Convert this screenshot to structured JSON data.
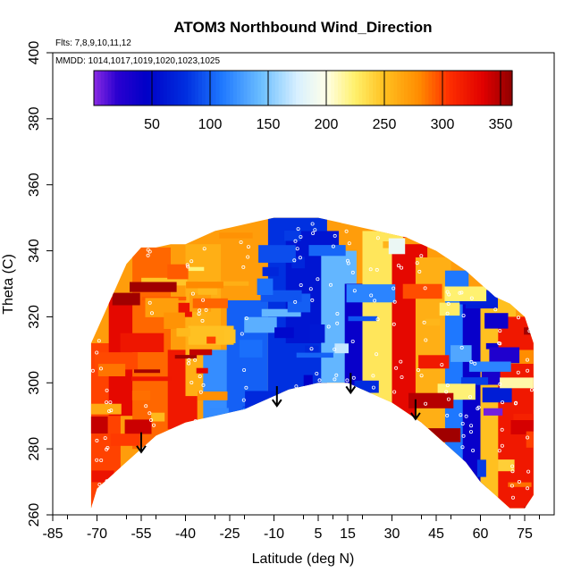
{
  "chart_data": {
    "type": "heatmap",
    "title": "ATOM3 Northbound Wind_Direction",
    "subtitle_flights": "Flts: 7,8,9,10,11,12",
    "subtitle_dates": "MMDD: 1014,1017,1019,1020,1023,1025",
    "xlabel": "Latitude (deg N)",
    "ylabel": "Theta (C)",
    "xlim": [
      -85,
      85
    ],
    "ylim": [
      260,
      400
    ],
    "x_ticks": [
      -85,
      -70,
      -55,
      -40,
      -25,
      -10,
      5,
      15,
      30,
      45,
      60,
      75
    ],
    "x_tick_labels": [
      "-85",
      "-70",
      "-55",
      "-40",
      "-25",
      "-10",
      "5",
      "15",
      "30",
      "45",
      "60",
      "75"
    ],
    "y_ticks": [
      260,
      280,
      300,
      320,
      340,
      360,
      380,
      400
    ],
    "y_tick_labels": [
      "260",
      "280",
      "300",
      "320",
      "340",
      "360",
      "380",
      "400"
    ],
    "colorbar": {
      "range": [
        0,
        360
      ],
      "ticks": [
        50,
        100,
        150,
        200,
        250,
        300,
        350
      ],
      "tick_labels": [
        "50",
        "100",
        "150",
        "200",
        "250",
        "300",
        "350"
      ],
      "stops": [
        {
          "v": 0,
          "c": "#8a2be2"
        },
        {
          "v": 20,
          "c": "#2a00d0"
        },
        {
          "v": 45,
          "c": "#0000c8"
        },
        {
          "v": 80,
          "c": "#0030e0"
        },
        {
          "v": 110,
          "c": "#1e78ff"
        },
        {
          "v": 145,
          "c": "#6ec0ff"
        },
        {
          "v": 175,
          "c": "#d8f0ff"
        },
        {
          "v": 200,
          "c": "#ffffe8"
        },
        {
          "v": 225,
          "c": "#fff06a"
        },
        {
          "v": 250,
          "c": "#ffc020"
        },
        {
          "v": 280,
          "c": "#ff8c00"
        },
        {
          "v": 305,
          "c": "#ff3000"
        },
        {
          "v": 335,
          "c": "#e00000"
        },
        {
          "v": 360,
          "c": "#900000"
        }
      ]
    },
    "data_envelope": {
      "lat": [
        -72,
        -70,
        -65,
        -60,
        -55,
        -50,
        -45,
        -40,
        -35,
        -30,
        -25,
        -20,
        -15,
        -10,
        -5,
        0,
        5,
        10,
        15,
        20,
        25,
        30,
        35,
        40,
        45,
        50,
        55,
        60,
        65,
        70,
        75,
        78
      ],
      "theta_top": [
        312,
        316,
        326,
        336,
        341,
        341,
        342,
        342,
        344,
        346,
        347,
        348,
        349,
        350,
        350,
        350,
        350,
        349,
        348,
        347,
        346,
        345,
        344,
        342,
        340,
        337,
        334,
        330,
        326,
        324,
        320,
        312
      ],
      "theta_bottom": [
        262,
        268,
        272,
        276,
        280,
        284,
        286,
        288,
        289,
        290,
        291,
        292,
        294,
        296,
        298,
        299,
        300,
        300,
        300,
        298,
        296,
        294,
        291,
        288,
        284,
        280,
        276,
        270,
        266,
        262,
        262,
        266
      ]
    },
    "regions": [
      {
        "lat": [
          -72,
          -62
        ],
        "theta": [
          262,
          312
        ],
        "value": 300
      },
      {
        "lat": [
          -66,
          -56
        ],
        "theta": [
          290,
          326
        ],
        "value": 330
      },
      {
        "lat": [
          -58,
          -45
        ],
        "theta": [
          280,
          341
        ],
        "value": 290
      },
      {
        "lat": [
          -46,
          -36
        ],
        "theta": [
          286,
          310
        ],
        "value": 320
      },
      {
        "lat": [
          -40,
          -28
        ],
        "theta": [
          296,
          342
        ],
        "value": 260
      },
      {
        "lat": [
          -34,
          -20
        ],
        "theta": [
          288,
          310
        ],
        "value": 120
      },
      {
        "lat": [
          -26,
          -12
        ],
        "theta": [
          290,
          325
        ],
        "value": 100
      },
      {
        "lat": [
          -12,
          8
        ],
        "theta": [
          296,
          350
        ],
        "value": 80
      },
      {
        "lat": [
          -6,
          12
        ],
        "theta": [
          312,
          346
        ],
        "value": 60
      },
      {
        "lat": [
          6,
          18
        ],
        "theta": [
          300,
          340
        ],
        "value": 140
      },
      {
        "lat": [
          14,
          28
        ],
        "theta": [
          298,
          330
        ],
        "value": 40
      },
      {
        "lat": [
          20,
          34
        ],
        "theta": [
          292,
          346
        ],
        "value": 230
      },
      {
        "lat": [
          30,
          42
        ],
        "theta": [
          286,
          342
        ],
        "value": 330
      },
      {
        "lat": [
          38,
          50
        ],
        "theta": [
          282,
          338
        ],
        "value": 260
      },
      {
        "lat": [
          48,
          56
        ],
        "theta": [
          276,
          334
        ],
        "value": 110
      },
      {
        "lat": [
          54,
          64
        ],
        "theta": [
          268,
          328
        ],
        "value": 40
      },
      {
        "lat": [
          60,
          72
        ],
        "theta": [
          262,
          326
        ],
        "value": 250
      },
      {
        "lat": [
          66,
          78
        ],
        "theta": [
          262,
          320
        ],
        "value": 320
      }
    ],
    "arrows": [
      {
        "lat": -55,
        "theta_start": 285,
        "theta_end": 279
      },
      {
        "lat": -9,
        "theta_start": 299,
        "theta_end": 293
      },
      {
        "lat": 16,
        "theta_start": 303,
        "theta_end": 297
      },
      {
        "lat": 38,
        "theta_start": 295,
        "theta_end": 289
      }
    ]
  }
}
